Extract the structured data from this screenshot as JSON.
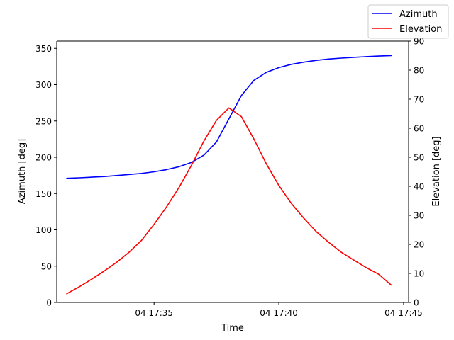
{
  "chart_data": {
    "type": "line",
    "title": "",
    "xlabel": "Time",
    "ylabel_left": "Azimuth [deg]",
    "ylabel_right": "Elevation [deg]",
    "x_unit": "minutes after 04 17:00",
    "xlim": [
      31.1,
      45.2
    ],
    "ylim_left": [
      0,
      360
    ],
    "ylim_right": [
      0,
      90
    ],
    "x_ticks": [
      {
        "value": 35,
        "label": "04 17:35"
      },
      {
        "value": 40,
        "label": "04 17:40"
      },
      {
        "value": 45,
        "label": "04 17:45"
      }
    ],
    "y_ticks_left": [
      0,
      50,
      100,
      150,
      200,
      250,
      300,
      350
    ],
    "y_ticks_right": [
      0,
      10,
      20,
      30,
      40,
      50,
      60,
      70,
      80,
      90
    ],
    "legend": {
      "placement": "top-right",
      "entries": [
        "Azimuth",
        "Elevation"
      ]
    },
    "series": [
      {
        "name": "Azimuth",
        "axis": "left",
        "color": "#0000ff",
        "x": [
          31.5,
          32.0,
          32.5,
          33.0,
          33.5,
          34.0,
          34.5,
          35.0,
          35.5,
          36.0,
          36.5,
          37.0,
          37.5,
          38.0,
          38.5,
          39.0,
          39.5,
          40.0,
          40.5,
          41.0,
          41.5,
          42.0,
          42.5,
          43.0,
          43.5,
          44.0,
          44.5
        ],
        "y": [
          171,
          171.7,
          172.6,
          173.5,
          174.8,
          176.3,
          177.8,
          180,
          183,
          187,
          193,
          203,
          221,
          253,
          285,
          306,
          317,
          323.5,
          328,
          331,
          333.5,
          335.3,
          336.6,
          337.7,
          338.6,
          339.4,
          340.1
        ]
      },
      {
        "name": "Elevation",
        "axis": "right",
        "color": "#ff0000",
        "x": [
          31.5,
          32.0,
          32.5,
          33.0,
          33.5,
          34.0,
          34.5,
          35.0,
          35.5,
          36.0,
          36.5,
          37.0,
          37.5,
          38.0,
          38.5,
          39.0,
          39.5,
          40.0,
          40.5,
          41.0,
          41.5,
          42.0,
          42.5,
          43.0,
          43.5,
          44.0,
          44.5
        ],
        "y": [
          3,
          5.4,
          8.0,
          10.8,
          13.8,
          17.3,
          21.4,
          26.9,
          32.9,
          39.6,
          47.3,
          55.6,
          62.7,
          67,
          64,
          56.3,
          47.7,
          40.3,
          34.1,
          29,
          24.4,
          20.7,
          17.3,
          14.6,
          12,
          9.7,
          6
        ]
      }
    ]
  }
}
